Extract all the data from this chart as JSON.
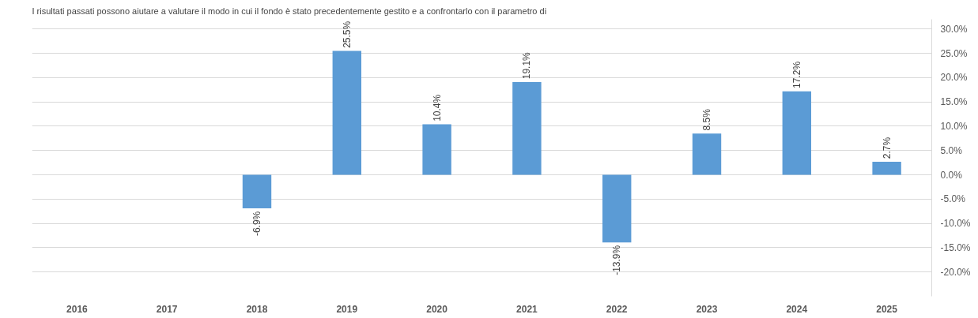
{
  "chart_data": {
    "type": "bar",
    "title": "I risultati passati possono aiutare a valutare il modo in cui il fondo è stato precedentemente gestito e a confrontarlo con il parametro di",
    "categories": [
      "2016",
      "2017",
      "2018",
      "2019",
      "2020",
      "2021",
      "2022",
      "2023",
      "2024",
      "2025"
    ],
    "series": [
      {
        "color": "#5b9bd5",
        "values": [
          null,
          null,
          -6.9,
          25.5,
          10.4,
          19.1,
          -13.9,
          8.5,
          17.2,
          2.7
        ],
        "value_labels": [
          null,
          null,
          "-6.9%",
          "25.5%",
          "10.4%",
          "19.1%",
          "-13.9%",
          "8.5%",
          "17.2%",
          "2.7%"
        ]
      }
    ],
    "ylim": [
      -25,
      32
    ],
    "yticks": [
      {
        "value": -20,
        "label": "-20.0%"
      },
      {
        "value": -15,
        "label": "-15.0%"
      },
      {
        "value": -10,
        "label": "-10.0%"
      },
      {
        "value": -5,
        "label": "-5.0%"
      },
      {
        "value": 0,
        "label": "0.0%"
      },
      {
        "value": 5,
        "label": "5.0%"
      },
      {
        "value": 10,
        "label": "10.0%"
      },
      {
        "value": 15,
        "label": "15.0%"
      },
      {
        "value": 20,
        "label": "20.0%"
      },
      {
        "value": 25,
        "label": "25.0%"
      },
      {
        "value": 30,
        "label": "30.0%"
      }
    ],
    "grid": "y"
  }
}
